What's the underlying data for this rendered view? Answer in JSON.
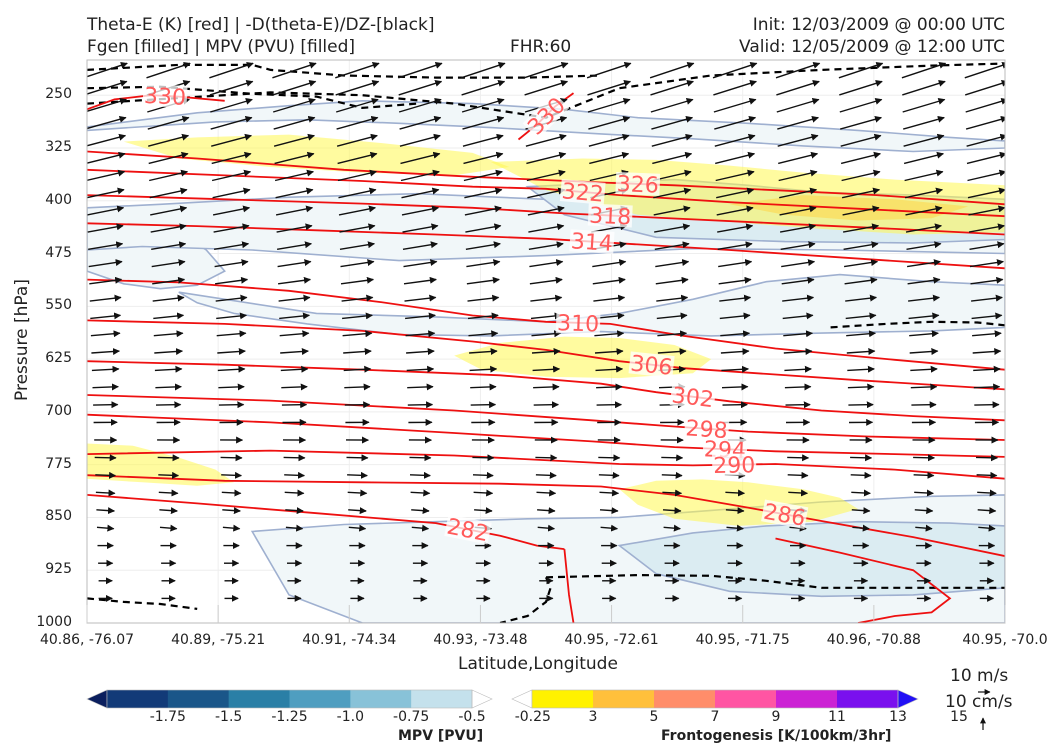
{
  "header": {
    "title_line1": "Theta-E (K) [red] | -D(theta-E)/DZ-[black]",
    "title_line2": "Fgen [filled] | MPV (PVU) [filled]",
    "fhr": "FHR:60",
    "init": "Init: 12/03/2009 @ 00:00 UTC",
    "valid": "Valid: 12/05/2009 @ 12:00 UTC"
  },
  "chart_data": {
    "type": "cross-section",
    "xlabel": "Latitude,Longitude",
    "ylabel": "Pressure [hPa]",
    "x_ticks": [
      "40.86, -76.07",
      "40.89, -75.21",
      "40.91, -74.34",
      "40.93, -73.48",
      "40.95, -72.61",
      "40.95, -71.75",
      "40.96, -70.88",
      "40.95, -70.0"
    ],
    "y_ticks": [
      "250",
      "325",
      "400",
      "475",
      "550",
      "625",
      "700",
      "775",
      "850",
      "925",
      "1000"
    ],
    "ylim": [
      1000,
      200
    ],
    "y_scale": "linear",
    "grid": true,
    "theta_e_contours": [
      {
        "label": "330",
        "x": [
          0.0,
          0.03,
          0.07,
          0.1,
          0.15
        ],
        "p": [
          270,
          256,
          250,
          252,
          258
        ]
      },
      {
        "label": "330",
        "x": [
          0.47,
          0.49,
          0.51,
          0.53
        ],
        "p": [
          313,
          292,
          266,
          247
        ]
      },
      {
        "label": "326",
        "x": [
          0.0,
          0.12,
          0.28,
          0.42,
          0.56,
          0.64,
          0.75,
          0.86,
          1.0
        ],
        "p": [
          330,
          340,
          356,
          366,
          374,
          378,
          385,
          392,
          405
        ]
      },
      {
        "label": "322",
        "x": [
          0.0,
          0.15,
          0.3,
          0.42,
          0.5,
          0.58,
          0.7,
          0.85,
          1.0
        ],
        "p": [
          356,
          364,
          372,
          380,
          383,
          392,
          402,
          412,
          422
        ]
      },
      {
        "label": "318",
        "x": [
          0.0,
          0.15,
          0.3,
          0.42,
          0.52,
          0.62,
          0.75,
          0.88,
          1.0
        ],
        "p": [
          392,
          398,
          404,
          410,
          418,
          424,
          432,
          440,
          448
        ]
      },
      {
        "label": "314",
        "x": [
          0.0,
          0.12,
          0.25,
          0.38,
          0.5,
          0.6,
          0.7,
          0.85,
          1.0
        ],
        "p": [
          432,
          436,
          442,
          448,
          454,
          462,
          470,
          483,
          496
        ]
      },
      {
        "label": "310",
        "x": [
          0.0,
          0.1,
          0.22,
          0.32,
          0.42,
          0.5,
          0.57,
          0.65,
          0.75,
          0.88,
          1.0
        ],
        "p": [
          512,
          516,
          528,
          544,
          563,
          572,
          575,
          592,
          610,
          626,
          640
        ]
      },
      {
        "label": "306",
        "x": [
          0.0,
          0.15,
          0.3,
          0.42,
          0.5,
          0.58,
          0.65,
          0.74,
          0.84,
          0.95,
          1.0
        ],
        "p": [
          570,
          575,
          585,
          600,
          612,
          628,
          638,
          646,
          655,
          664,
          668
        ]
      },
      {
        "label": "302",
        "x": [
          0.0,
          0.15,
          0.3,
          0.45,
          0.56,
          0.62,
          0.7,
          0.8,
          0.9,
          1.0
        ],
        "p": [
          628,
          633,
          640,
          648,
          660,
          672,
          685,
          698,
          706,
          712
        ]
      },
      {
        "label": "298",
        "x": [
          0.0,
          0.2,
          0.4,
          0.55,
          0.63,
          0.72,
          0.85,
          1.0
        ],
        "p": [
          676,
          684,
          698,
          712,
          720,
          728,
          735,
          740
        ]
      },
      {
        "label": "294",
        "x": [
          0.0,
          0.2,
          0.4,
          0.55,
          0.64,
          0.75,
          0.88,
          1.0
        ],
        "p": [
          704,
          715,
          730,
          742,
          750,
          756,
          760,
          764
        ]
      },
      {
        "label": "290",
        "x": [
          0.0,
          0.2,
          0.4,
          0.58,
          0.66,
          0.75,
          0.88,
          1.0
        ],
        "p": [
          760,
          755,
          762,
          774,
          776,
          774,
          782,
          795
        ]
      },
      {
        "label": "286",
        "x": [
          0.0,
          0.15,
          0.3,
          0.45,
          0.56,
          0.64,
          0.72,
          0.8,
          0.9,
          1.0
        ],
        "p": [
          790,
          798,
          800,
          802,
          806,
          818,
          836,
          855,
          878,
          905
        ]
      },
      {
        "label": "282",
        "x": [
          0.0,
          0.12,
          0.25,
          0.38,
          0.45,
          0.49,
          0.52
        ],
        "p": [
          818,
          830,
          844,
          858,
          876,
          890,
          895
        ]
      },
      {
        "label": "",
        "x": [
          0.52,
          0.525,
          0.53
        ],
        "p": [
          895,
          960,
          1000
        ]
      },
      {
        "label": "",
        "x": [
          0.75,
          0.82,
          0.9,
          0.94,
          0.92,
          0.88,
          0.84
        ],
        "p": [
          880,
          900,
          925,
          965,
          985,
          990,
          1000
        ]
      }
    ],
    "dthetae_dz_contours": [
      {
        "x": [
          0.0,
          0.1,
          0.18,
          0.2,
          0.28,
          0.38,
          0.48,
          0.56
        ],
        "p": [
          214,
          207,
          207,
          214,
          222,
          225,
          225,
          222
        ]
      },
      {
        "x": [
          0.0,
          0.08,
          0.18,
          0.25,
          0.3,
          0.36
        ],
        "p": [
          240,
          238,
          248,
          252,
          268,
          262
        ]
      },
      {
        "x": [
          0.0,
          0.1,
          0.2,
          0.3,
          0.4,
          0.5,
          0.58,
          0.68,
          0.8,
          0.92,
          1.0
        ],
        "p": [
          262,
          254,
          246,
          250,
          262,
          282,
          240,
          222,
          214,
          208,
          205
        ]
      },
      {
        "x": [
          0.81,
          0.87,
          0.92,
          0.97,
          1.0
        ],
        "p": [
          580,
          575,
          572,
          573,
          577
        ]
      },
      {
        "x": [
          0.0,
          0.04,
          0.08,
          0.12
        ],
        "p": [
          965,
          970,
          973,
          980
        ]
      },
      {
        "x": [
          0.5,
          0.6,
          0.68,
          0.74,
          0.8,
          0.9,
          1.0
        ],
        "p": [
          935,
          932,
          933,
          940,
          950,
          950,
          950
        ]
      },
      {
        "x": [
          0.5,
          0.505,
          0.5,
          0.48,
          0.45
        ],
        "p": [
          935,
          950,
          970,
          990,
          1000
        ]
      }
    ],
    "mpv_regions": [
      {
        "level": "-0.25",
        "x": [
          0.0,
          0.05,
          0.1,
          0.13,
          0.15,
          0.12,
          0.08,
          0.04,
          0.0
        ],
        "p": [
          440,
          438,
          445,
          470,
          500,
          520,
          525,
          518,
          500
        ]
      },
      {
        "level": "-0.25",
        "x": [
          0.1,
          0.25,
          0.38,
          0.5,
          0.58,
          0.66,
          0.74,
          0.82,
          0.92,
          1.0,
          1.0,
          0.92,
          0.8,
          0.68,
          0.56,
          0.44,
          0.34,
          0.24,
          0.16,
          0.12
        ],
        "p": [
          530,
          560,
          565,
          572,
          560,
          540,
          515,
          505,
          515,
          520,
          580,
          585,
          588,
          592,
          586,
          592,
          590,
          575,
          560,
          545
        ]
      },
      {
        "level": "-0.25",
        "x": [
          0.0,
          0.08,
          0.22,
          0.36,
          0.5,
          0.62,
          0.76,
          0.9,
          1.0,
          1.0,
          0.82,
          0.66,
          0.5,
          0.34,
          0.18,
          0.06,
          0.0
        ],
        "p": [
          410,
          405,
          395,
          390,
          398,
          405,
          400,
          396,
          400,
          475,
          470,
          468,
          478,
          485,
          470,
          465,
          470
        ]
      },
      {
        "level": "-0.25",
        "x": [
          0.0,
          0.12,
          0.22,
          0.3,
          0.42,
          0.52,
          0.6,
          0.72,
          0.84,
          0.94,
          1.0,
          1.0,
          0.9,
          0.78,
          0.66,
          0.56,
          0.44,
          0.34,
          0.24,
          0.14,
          0.0
        ],
        "p": [
          295,
          275,
          265,
          258,
          262,
          270,
          282,
          290,
          300,
          310,
          315,
          325,
          330,
          322,
          312,
          305,
          296,
          290,
          285,
          288,
          300
        ]
      },
      {
        "level": "-0.25",
        "x": [
          0.18,
          0.28,
          0.38,
          0.48,
          0.58,
          0.68,
          0.8,
          0.92,
          1.0,
          1.0,
          0.85,
          0.7,
          0.56,
          0.42,
          0.3,
          0.22
        ],
        "p": [
          870,
          860,
          856,
          852,
          850,
          840,
          828,
          820,
          818,
          1000,
          1000,
          1000,
          1000,
          1000,
          1000,
          960
        ]
      },
      {
        "level": "-0.5",
        "x": [
          0.58,
          0.66,
          0.74,
          0.84,
          0.94,
          1.0,
          1.0,
          0.9,
          0.8,
          0.7,
          0.62
        ],
        "p": [
          890,
          872,
          862,
          856,
          858,
          862,
          950,
          960,
          962,
          955,
          930
        ]
      },
      {
        "level": "-0.5",
        "x": [
          0.48,
          0.56,
          0.64,
          0.72,
          0.8,
          0.9,
          1.0,
          1.0,
          0.9,
          0.76,
          0.62,
          0.52
        ],
        "p": [
          380,
          375,
          370,
          378,
          388,
          392,
          398,
          455,
          460,
          458,
          452,
          420
        ]
      }
    ],
    "fgen_regions": [
      {
        "level": "3",
        "x": [
          0.04,
          0.12,
          0.22,
          0.32,
          0.42,
          0.46,
          0.4,
          0.3,
          0.2,
          0.1
        ],
        "p": [
          316,
          310,
          306,
          318,
          332,
          352,
          364,
          360,
          352,
          340
        ]
      },
      {
        "level": "3",
        "x": [
          0.44,
          0.54,
          0.62,
          0.7,
          0.78,
          0.88,
          1.0,
          1.0,
          0.9,
          0.8,
          0.7,
          0.6,
          0.5
        ],
        "p": [
          345,
          340,
          342,
          350,
          360,
          370,
          378,
          445,
          448,
          440,
          430,
          420,
          385
        ]
      },
      {
        "level": "3",
        "x": [
          0.4,
          0.45,
          0.52,
          0.58,
          0.64,
          0.68,
          0.66,
          0.58,
          0.5,
          0.43
        ],
        "p": [
          620,
          602,
          593,
          595,
          605,
          625,
          645,
          652,
          650,
          640
        ]
      },
      {
        "level": "3",
        "x": [
          0.0,
          0.05,
          0.1,
          0.14,
          0.16,
          0.12,
          0.06,
          0.0
        ],
        "p": [
          745,
          748,
          765,
          782,
          800,
          805,
          800,
          795
        ]
      },
      {
        "level": "3",
        "x": [
          0.58,
          0.62,
          0.67,
          0.72,
          0.78,
          0.82,
          0.84,
          0.79,
          0.71,
          0.64,
          0.6
        ],
        "p": [
          810,
          798,
          796,
          800,
          810,
          822,
          838,
          856,
          862,
          852,
          832
        ]
      },
      {
        "level": "5",
        "x": [
          0.7,
          0.78,
          0.88,
          0.96,
          0.92,
          0.84,
          0.76
        ],
        "p": [
          405,
          392,
          398,
          408,
          425,
          428,
          420
        ]
      }
    ],
    "wind_vectors": {
      "description": "along-plane wind arrows, strong upper-level westerlies, weakening near surface",
      "reference_labels": [
        "10 m/s",
        "10 cm/s"
      ]
    },
    "colorbar_mpv": {
      "title": "MPV [PVU]",
      "ticks": [
        "-1.75",
        "-1.5",
        "-1.25",
        "-1.0",
        "-0.75",
        "-0.5",
        "-0.25"
      ],
      "colors": [
        "#0b1f5e",
        "#123a78",
        "#1a5689",
        "#2a7fa6",
        "#4f9ec0",
        "#88c2d8",
        "#c4e1ec",
        "#ffffff"
      ]
    },
    "colorbar_fgen": {
      "title": "Frontogenesis [K/100km/3hr]",
      "ticks": [
        "3",
        "5",
        "7",
        "9",
        "11",
        "13",
        "15"
      ],
      "colors": [
        "#ffffff",
        "#fff200",
        "#ffc03b",
        "#ff8d6a",
        "#ff55a3",
        "#cc22d4",
        "#7a10ee",
        "#2210f5"
      ]
    }
  }
}
